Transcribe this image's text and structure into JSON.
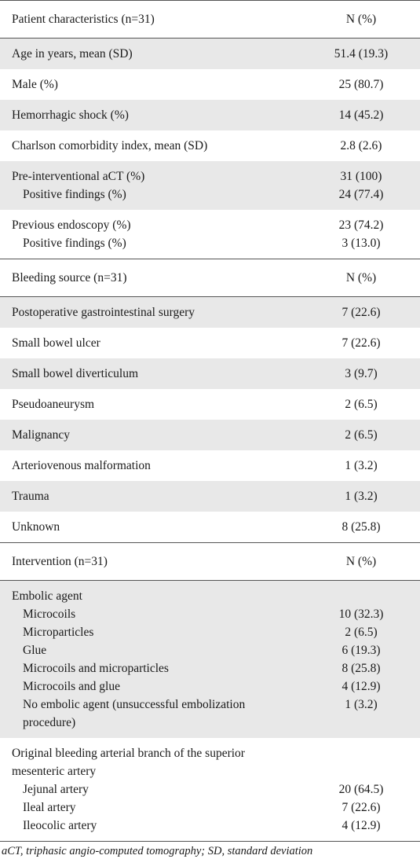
{
  "sections": [
    {
      "header": {
        "label": "Patient characteristics (n=31)",
        "value": "N (%)"
      },
      "groups": [
        {
          "lines": [
            {
              "label": "Age in years, mean (SD)",
              "value": "51.4 (19.3)"
            }
          ]
        },
        {
          "lines": [
            {
              "label": "Male (%)",
              "value": "25 (80.7)"
            }
          ]
        },
        {
          "lines": [
            {
              "label": "Hemorrhagic shock (%)",
              "value": "14 (45.2)"
            }
          ]
        },
        {
          "lines": [
            {
              "label": "Charlson comorbidity index, mean (SD)",
              "value": "2.8 (2.6)"
            }
          ]
        },
        {
          "lines": [
            {
              "label": "Pre-interventional aCT (%)",
              "value": "31 (100)"
            },
            {
              "label": "Positive findings (%)",
              "value": "24 (77.4)",
              "indent": true
            }
          ]
        },
        {
          "lines": [
            {
              "label": "Previous endoscopy (%)",
              "value": "23 (74.2)"
            },
            {
              "label": "Positive findings (%)",
              "value": "3 (13.0)",
              "indent": true
            }
          ]
        }
      ]
    },
    {
      "header": {
        "label": "Bleeding source (n=31)",
        "value": "N (%)"
      },
      "groups": [
        {
          "lines": [
            {
              "label": "Postoperative gastrointestinal surgery",
              "value": "7 (22.6)"
            }
          ]
        },
        {
          "lines": [
            {
              "label": "Small bowel ulcer",
              "value": "7 (22.6)"
            }
          ]
        },
        {
          "lines": [
            {
              "label": "Small bowel diverticulum",
              "value": "3 (9.7)"
            }
          ]
        },
        {
          "lines": [
            {
              "label": "Pseudoaneurysm",
              "value": "2 (6.5)"
            }
          ]
        },
        {
          "lines": [
            {
              "label": "Malignancy",
              "value": "2 (6.5)"
            }
          ]
        },
        {
          "lines": [
            {
              "label": "Arteriovenous malformation",
              "value": "1 (3.2)"
            }
          ]
        },
        {
          "lines": [
            {
              "label": "Trauma",
              "value": "1 (3.2)"
            }
          ]
        },
        {
          "lines": [
            {
              "label": "Unknown",
              "value": "8 (25.8)"
            }
          ]
        }
      ]
    },
    {
      "header": {
        "label": "Intervention (n=31)",
        "value": "N (%)"
      },
      "groups": [
        {
          "lines": [
            {
              "label": "Embolic agent",
              "value": ""
            },
            {
              "label": "Microcoils",
              "value": "10 (32.3)",
              "indent": true
            },
            {
              "label": "Microparticles",
              "value": "2 (6.5)",
              "indent": true
            },
            {
              "label": "Glue",
              "value": "6 (19.3)",
              "indent": true
            },
            {
              "label": "Microcoils and microparticles",
              "value": "8 (25.8)",
              "indent": true
            },
            {
              "label": "Microcoils and glue",
              "value": "4 (12.9)",
              "indent": true
            },
            {
              "label": "No embolic agent (unsuccessful embolization procedure)",
              "value": "1 (3.2)",
              "indent": true
            }
          ]
        },
        {
          "lines": [
            {
              "label": "Original bleeding arterial branch of the superior mesenteric artery",
              "value": ""
            },
            {
              "label": "Jejunal artery",
              "value": "20 (64.5)",
              "indent": true
            },
            {
              "label": "Ileal artery",
              "value": "7 (22.6)",
              "indent": true
            },
            {
              "label": "Ileocolic artery",
              "value": "4 (12.9)",
              "indent": true
            }
          ]
        }
      ]
    }
  ],
  "footnote": "aCT, triphasic angio-computed tomography; SD, standard deviation"
}
